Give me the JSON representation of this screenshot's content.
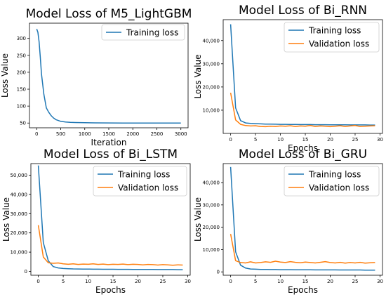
{
  "colors": {
    "training": "#1f77b4",
    "validation": "#ff7f0e",
    "axis": "#000000"
  },
  "chart_data": [
    {
      "type": "line",
      "title": "Model Loss of M5_LightGBM",
      "xlabel": "Iteration",
      "ylabel": "Loss Value",
      "xlim": [
        -150,
        3150
      ],
      "ylim": [
        36,
        345
      ],
      "xticks": [
        0,
        500,
        1000,
        1500,
        2000,
        2500,
        3000
      ],
      "xtick_labels": [
        "0",
        "500",
        "1000",
        "1500",
        "2000",
        "2500",
        "3000"
      ],
      "yticks": [
        50,
        100,
        150,
        200,
        250,
        300
      ],
      "ytick_labels": [
        "50",
        "100",
        "150",
        "200",
        "250",
        "300"
      ],
      "grid": false,
      "legend_position": "top-right",
      "series": [
        {
          "name": "Training loss",
          "color": "#1f77b4",
          "x": [
            0,
            25,
            50,
            75,
            100,
            150,
            200,
            250,
            300,
            350,
            400,
            500,
            600,
            700,
            800,
            1000,
            1200,
            1500,
            1800,
            2000,
            2500,
            3000
          ],
          "y": [
            328,
            318,
            290,
            245,
            195,
            135,
            95,
            82,
            72,
            65,
            60,
            55,
            53,
            52,
            51.5,
            51,
            50.5,
            50.3,
            50.2,
            50.1,
            50,
            49.8
          ]
        }
      ]
    },
    {
      "type": "line",
      "title": "Model Loss of Bi_RNN",
      "xlabel": "Epochs",
      "ylabel": "Loss Value",
      "xlim": [
        -1.5,
        30.5
      ],
      "ylim": [
        0,
        49000
      ],
      "xticks": [
        0,
        5,
        10,
        15,
        20,
        25,
        30
      ],
      "xtick_labels": [
        "0",
        "5",
        "10",
        "15",
        "20",
        "25",
        "30"
      ],
      "yticks": [
        10000,
        20000,
        30000,
        40000
      ],
      "ytick_labels": [
        "10,000",
        "20,000",
        "30,000",
        "40,000"
      ],
      "grid": false,
      "legend_position": "top-right",
      "series": [
        {
          "name": "Training loss",
          "color": "#1f77b4",
          "x": [
            0,
            1,
            2,
            3,
            4,
            5,
            6,
            7,
            8,
            9,
            10,
            11,
            12,
            13,
            14,
            15,
            16,
            17,
            18,
            19,
            20,
            21,
            22,
            23,
            24,
            25,
            26,
            27,
            28,
            29
          ],
          "y": [
            47000,
            11000,
            5500,
            4500,
            4300,
            4200,
            4100,
            4000,
            4000,
            3950,
            3900,
            3900,
            3850,
            3850,
            3800,
            3800,
            3800,
            3750,
            3750,
            3750,
            3700,
            3700,
            3700,
            3700,
            3650,
            3650,
            3650,
            3650,
            3600,
            3600
          ]
        },
        {
          "name": "Validation loss",
          "color": "#ff7f0e",
          "x": [
            0,
            1,
            2,
            3,
            4,
            5,
            6,
            7,
            8,
            9,
            10,
            11,
            12,
            13,
            14,
            15,
            16,
            17,
            18,
            19,
            20,
            21,
            22,
            23,
            24,
            25,
            26,
            27,
            28,
            29
          ],
          "y": [
            17500,
            5800,
            3900,
            3400,
            3200,
            3300,
            3000,
            2900,
            3100,
            3000,
            3200,
            3100,
            3300,
            3000,
            3200,
            3100,
            3400,
            3000,
            3200,
            3100,
            2900,
            3100,
            3300,
            3000,
            3200,
            3400,
            3000,
            3100,
            3200,
            3300
          ]
        }
      ]
    },
    {
      "type": "line",
      "title": "Model Loss of Bi_LSTM",
      "xlabel": "Epochs",
      "ylabel": "Loss Value",
      "xlim": [
        -1.5,
        30.5
      ],
      "ylim": [
        -2000,
        56000
      ],
      "xticks": [
        0,
        5,
        10,
        15,
        20,
        25,
        30
      ],
      "xtick_labels": [
        "0",
        "5",
        "10",
        "15",
        "20",
        "25",
        "30"
      ],
      "yticks": [
        0,
        10000,
        20000,
        30000,
        40000,
        50000
      ],
      "ytick_labels": [
        "0",
        "10,000",
        "20,000",
        "30,000",
        "40,000",
        "50,000"
      ],
      "grid": false,
      "legend_position": "top-right",
      "series": [
        {
          "name": "Training loss",
          "color": "#1f77b4",
          "x": [
            0,
            1,
            2,
            3,
            4,
            5,
            6,
            7,
            8,
            9,
            10,
            11,
            12,
            13,
            14,
            15,
            16,
            17,
            18,
            19,
            20,
            21,
            22,
            23,
            24,
            25,
            26,
            27,
            28,
            29
          ],
          "y": [
            55000,
            15000,
            5500,
            2500,
            1800,
            1500,
            1400,
            1300,
            1250,
            1200,
            1200,
            1150,
            1150,
            1100,
            1100,
            1100,
            1050,
            1050,
            1050,
            1000,
            1000,
            1000,
            1000,
            1000,
            950,
            950,
            950,
            950,
            900,
            900
          ]
        },
        {
          "name": "Validation loss",
          "color": "#ff7f0e",
          "x": [
            0,
            1,
            2,
            3,
            4,
            5,
            6,
            7,
            8,
            9,
            10,
            11,
            12,
            13,
            14,
            15,
            16,
            17,
            18,
            19,
            20,
            21,
            22,
            23,
            24,
            25,
            26,
            27,
            28,
            29
          ],
          "y": [
            24000,
            7500,
            4500,
            4200,
            4400,
            3900,
            3700,
            3900,
            3600,
            3800,
            3700,
            3900,
            3600,
            3800,
            3500,
            3700,
            3600,
            3800,
            3500,
            3700,
            3600,
            3400,
            3600,
            3500,
            3300,
            3500,
            3400,
            3200,
            3400,
            3300
          ]
        }
      ]
    },
    {
      "type": "line",
      "title": "Model Loss of Bi_GRU",
      "xlabel": "Epochs",
      "ylabel": "Loss Value",
      "xlim": [
        -1.5,
        30.5
      ],
      "ylim": [
        -1500,
        48500
      ],
      "xticks": [
        0,
        5,
        10,
        15,
        20,
        25,
        30
      ],
      "xtick_labels": [
        "0",
        "5",
        "10",
        "15",
        "20",
        "25",
        "30"
      ],
      "yticks": [
        0,
        10000,
        20000,
        30000,
        40000
      ],
      "ytick_labels": [
        "0",
        "10,000",
        "20,000",
        "30,000",
        "40,000"
      ],
      "grid": false,
      "legend_position": "top-right",
      "series": [
        {
          "name": "Training loss",
          "color": "#1f77b4",
          "x": [
            0,
            1,
            2,
            3,
            4,
            5,
            6,
            7,
            8,
            9,
            10,
            11,
            12,
            13,
            14,
            15,
            16,
            17,
            18,
            19,
            20,
            21,
            22,
            23,
            24,
            25,
            26,
            27,
            28,
            29
          ],
          "y": [
            47000,
            9000,
            3000,
            1700,
            1300,
            1200,
            1100,
            1100,
            1050,
            1050,
            1000,
            1000,
            1000,
            950,
            950,
            950,
            950,
            900,
            900,
            900,
            900,
            900,
            850,
            850,
            850,
            850,
            850,
            800,
            800,
            800
          ]
        },
        {
          "name": "Validation loss",
          "color": "#ff7f0e",
          "x": [
            0,
            1,
            2,
            3,
            4,
            5,
            6,
            7,
            8,
            9,
            10,
            11,
            12,
            13,
            14,
            15,
            16,
            17,
            18,
            19,
            20,
            21,
            22,
            23,
            24,
            25,
            26,
            27,
            28,
            29
          ],
          "y": [
            17000,
            5000,
            4200,
            4000,
            4500,
            4000,
            4200,
            4500,
            4300,
            4800,
            4400,
            4200,
            4600,
            4300,
            4100,
            4400,
            4200,
            4000,
            4300,
            4600,
            4200,
            4000,
            4300,
            3900,
            4200,
            4000,
            4300,
            3900,
            4100,
            4200
          ]
        }
      ]
    }
  ]
}
